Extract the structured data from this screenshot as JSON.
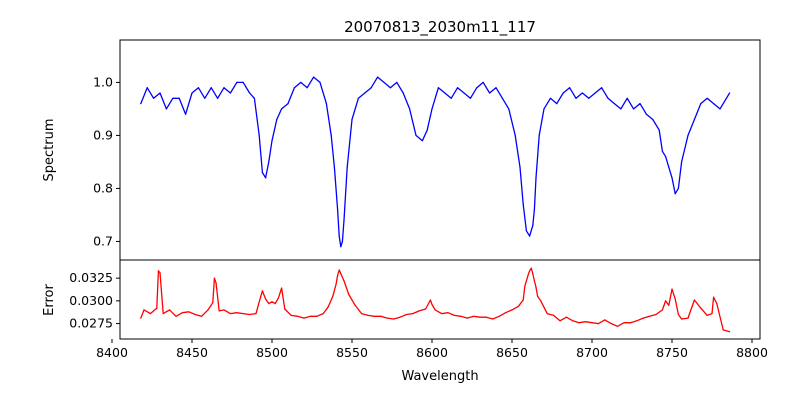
{
  "chart_data": {
    "type": "line",
    "title": "20070813_2030m11_117",
    "xlabel": "Wavelength",
    "xlim": [
      8405,
      8805
    ],
    "xticks": [
      8400,
      8450,
      8500,
      8550,
      8600,
      8650,
      8700,
      8750,
      8800
    ],
    "panels": [
      {
        "name": "spectrum",
        "ylabel": "Spectrum",
        "ylim": [
          0.665,
          1.08
        ],
        "yticks": [
          0.7,
          0.8,
          0.9,
          1.0
        ],
        "ytick_labels": [
          "0.7",
          "0.8",
          "0.9",
          "1.0"
        ],
        "color": "#0000ff",
        "x": [
          8418,
          8422,
          8426,
          8430,
          8434,
          8438,
          8442,
          8446,
          8450,
          8454,
          8458,
          8462,
          8466,
          8470,
          8474,
          8478,
          8482,
          8486,
          8489,
          8492,
          8494,
          8496,
          8498,
          8500,
          8503,
          8506,
          8510,
          8514,
          8518,
          8522,
          8526,
          8530,
          8534,
          8537,
          8539,
          8541,
          8542,
          8543,
          8544,
          8545,
          8547,
          8550,
          8554,
          8558,
          8562,
          8566,
          8570,
          8574,
          8578,
          8582,
          8586,
          8590,
          8594,
          8597,
          8600,
          8604,
          8608,
          8612,
          8616,
          8620,
          8624,
          8628,
          8632,
          8636,
          8640,
          8644,
          8648,
          8652,
          8655,
          8657,
          8659,
          8661,
          8663,
          8664,
          8665,
          8667,
          8670,
          8674,
          8678,
          8682,
          8686,
          8690,
          8694,
          8698,
          8702,
          8706,
          8710,
          8714,
          8718,
          8722,
          8726,
          8730,
          8734,
          8738,
          8742,
          8744,
          8746,
          8748,
          8750,
          8752,
          8754,
          8756,
          8760,
          8764,
          8768,
          8772,
          8776,
          8780,
          8784,
          8786
        ],
        "y": [
          0.96,
          0.99,
          0.97,
          0.98,
          0.95,
          0.97,
          0.97,
          0.94,
          0.98,
          0.99,
          0.97,
          0.99,
          0.97,
          0.99,
          0.98,
          1.0,
          1.0,
          0.98,
          0.97,
          0.9,
          0.83,
          0.82,
          0.85,
          0.89,
          0.93,
          0.95,
          0.96,
          0.99,
          1.0,
          0.99,
          1.01,
          1.0,
          0.96,
          0.9,
          0.84,
          0.76,
          0.71,
          0.69,
          0.7,
          0.74,
          0.84,
          0.93,
          0.97,
          0.98,
          0.99,
          1.01,
          1.0,
          0.99,
          1.0,
          0.98,
          0.95,
          0.9,
          0.89,
          0.91,
          0.95,
          0.99,
          0.98,
          0.97,
          0.99,
          0.98,
          0.97,
          0.99,
          1.0,
          0.98,
          0.99,
          0.97,
          0.95,
          0.9,
          0.84,
          0.77,
          0.72,
          0.71,
          0.73,
          0.76,
          0.82,
          0.9,
          0.95,
          0.97,
          0.96,
          0.98,
          0.99,
          0.97,
          0.98,
          0.97,
          0.98,
          0.99,
          0.97,
          0.96,
          0.95,
          0.97,
          0.95,
          0.96,
          0.94,
          0.93,
          0.91,
          0.87,
          0.86,
          0.84,
          0.82,
          0.79,
          0.8,
          0.85,
          0.9,
          0.93,
          0.96,
          0.97,
          0.96,
          0.95,
          0.97,
          0.98
        ]
      },
      {
        "name": "error",
        "ylabel": "Error",
        "ylim": [
          0.0258,
          0.0345
        ],
        "yticks": [
          0.0275,
          0.03,
          0.0325
        ],
        "ytick_labels": [
          "0.0275",
          "0.0300",
          "0.0325"
        ],
        "color": "#ff0000",
        "x": [
          8418,
          8420,
          8424,
          8428,
          8429,
          8430,
          8432,
          8436,
          8440,
          8444,
          8448,
          8452,
          8456,
          8460,
          8463,
          8464,
          8465,
          8467,
          8470,
          8474,
          8478,
          8482,
          8486,
          8490,
          8493,
          8494,
          8496,
          8498,
          8500,
          8502,
          8504,
          8506,
          8508,
          8512,
          8516,
          8520,
          8524,
          8528,
          8532,
          8535,
          8538,
          8540,
          8541,
          8542,
          8543,
          8545,
          8548,
          8552,
          8556,
          8560,
          8564,
          8568,
          8572,
          8576,
          8580,
          8584,
          8588,
          8592,
          8596,
          8599,
          8600,
          8602,
          8606,
          8610,
          8614,
          8618,
          8622,
          8626,
          8630,
          8634,
          8638,
          8642,
          8646,
          8650,
          8654,
          8657,
          8658,
          8660,
          8661,
          8662,
          8663,
          8664,
          8665,
          8666,
          8668,
          8672,
          8676,
          8680,
          8684,
          8688,
          8692,
          8696,
          8700,
          8704,
          8708,
          8712,
          8716,
          8720,
          8724,
          8728,
          8732,
          8736,
          8740,
          8744,
          8746,
          8748,
          8750,
          8752,
          8754,
          8756,
          8760,
          8764,
          8768,
          8772,
          8775,
          8776,
          8778,
          8782,
          8786
        ],
        "y": [
          0.0281,
          0.029,
          0.0286,
          0.0292,
          0.0333,
          0.0331,
          0.0286,
          0.029,
          0.0283,
          0.0287,
          0.0288,
          0.0285,
          0.0283,
          0.029,
          0.0298,
          0.0325,
          0.032,
          0.0289,
          0.029,
          0.0286,
          0.0287,
          0.0286,
          0.0285,
          0.0286,
          0.0305,
          0.0311,
          0.0302,
          0.0297,
          0.0299,
          0.0297,
          0.0303,
          0.0314,
          0.0291,
          0.0284,
          0.0283,
          0.0281,
          0.0283,
          0.0283,
          0.0286,
          0.0293,
          0.0305,
          0.0318,
          0.0328,
          0.0334,
          0.033,
          0.0322,
          0.0307,
          0.0295,
          0.0286,
          0.0284,
          0.0283,
          0.0283,
          0.0281,
          0.028,
          0.0282,
          0.0285,
          0.0286,
          0.0289,
          0.0291,
          0.0301,
          0.0296,
          0.029,
          0.0286,
          0.0287,
          0.0284,
          0.0283,
          0.0281,
          0.0283,
          0.0282,
          0.0282,
          0.028,
          0.0283,
          0.0287,
          0.029,
          0.0294,
          0.0301,
          0.0316,
          0.0328,
          0.0333,
          0.0336,
          0.033,
          0.0322,
          0.0315,
          0.0305,
          0.03,
          0.0286,
          0.0284,
          0.0278,
          0.0282,
          0.0278,
          0.0276,
          0.0277,
          0.0276,
          0.0275,
          0.0279,
          0.0275,
          0.0272,
          0.0276,
          0.0276,
          0.0278,
          0.0281,
          0.0283,
          0.0285,
          0.029,
          0.03,
          0.0295,
          0.0313,
          0.0302,
          0.0285,
          0.028,
          0.0281,
          0.0301,
          0.0292,
          0.0284,
          0.0286,
          0.0304,
          0.0297,
          0.0268,
          0.0266
        ]
      }
    ]
  }
}
